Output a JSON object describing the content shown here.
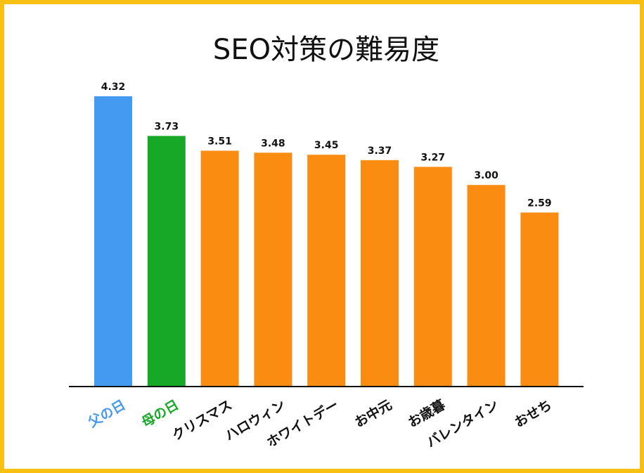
{
  "chart_data": {
    "type": "bar",
    "title": "SEO対策の難易度",
    "categories": [
      "父の日",
      "母の日",
      "クリスマス",
      "ハロウィン",
      "ホワイトデー",
      "お中元",
      "お歳暮",
      "バレンタイン",
      "おせち"
    ],
    "values": [
      4.32,
      3.73,
      3.51,
      3.48,
      3.45,
      3.37,
      3.27,
      3.0,
      2.59
    ],
    "value_labels": [
      "4.32",
      "3.73",
      "3.51",
      "3.48",
      "3.45",
      "3.37",
      "3.27",
      "3.00",
      "2.59"
    ],
    "colors": [
      "#4499f0",
      "#18a828",
      "#fb8c12",
      "#fb8c12",
      "#fb8c12",
      "#fb8c12",
      "#fb8c12",
      "#fb8c12",
      "#fb8c12"
    ],
    "label_colors": [
      "#4499f0",
      "#18a828",
      "#111111",
      "#111111",
      "#111111",
      "#111111",
      "#111111",
      "#111111",
      "#111111"
    ],
    "xlabel": "",
    "ylabel": "",
    "ylim": [
      0,
      4.32
    ],
    "grid": false,
    "border_color": "#f8c012"
  }
}
